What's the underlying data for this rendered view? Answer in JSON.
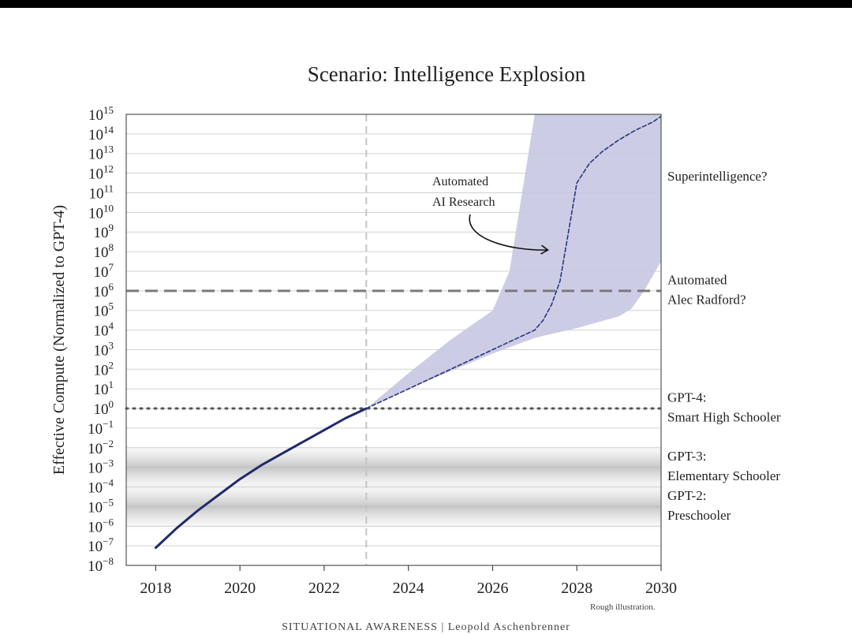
{
  "chart_data": {
    "type": "line",
    "title": "Scenario: Intelligence Explosion",
    "ylabel": "Effective Compute (Normalized to GPT-4)",
    "xlabel": "",
    "y_scale": "log10",
    "xlim": [
      2017.3,
      2030
    ],
    "ylim": [
      1e-08,
      1000000000000000.0
    ],
    "x_ticks": [
      "2018",
      "2020",
      "2022",
      "2024",
      "2026",
      "2028",
      "2030"
    ],
    "y_tick_exponents": [
      15,
      14,
      13,
      12,
      11,
      10,
      9,
      8,
      7,
      6,
      5,
      4,
      3,
      2,
      1,
      0,
      -1,
      -2,
      -3,
      -4,
      -5,
      -6,
      -7,
      -8
    ],
    "y_tick_base": "10",
    "grid": true,
    "series": [
      {
        "role": "historical",
        "style": "solid",
        "color": "#1f2a6b",
        "x": [
          2018.0,
          2018.5,
          2019.0,
          2019.5,
          2020.0,
          2020.5,
          2021.0,
          2021.5,
          2022.0,
          2022.5,
          2023.0
        ],
        "y_log10": [
          -7.1,
          -6.1,
          -5.2,
          -4.4,
          -3.6,
          -2.9,
          -2.3,
          -1.7,
          -1.1,
          -0.5,
          0.0
        ]
      },
      {
        "role": "projection",
        "style": "dashed",
        "color": "#2a3580",
        "x": [
          2023.0,
          2023.5,
          2024.0,
          2024.5,
          2025.0,
          2025.5,
          2026.0,
          2026.5,
          2027.0,
          2027.2,
          2027.4,
          2027.6,
          2027.8,
          2028.0,
          2028.3,
          2028.6,
          2029.0,
          2029.4,
          2029.8,
          2030.0
        ],
        "y_log10": [
          0.0,
          0.5,
          1.0,
          1.5,
          2.0,
          2.5,
          3.0,
          3.5,
          4.0,
          4.5,
          5.3,
          6.5,
          9.0,
          11.5,
          12.5,
          13.1,
          13.7,
          14.2,
          14.6,
          14.9
        ]
      }
    ],
    "uncertainty_band": {
      "color": "#c7c8e2",
      "x": [
        2023.0,
        2024.0,
        2025.0,
        2026.0,
        2026.4,
        2026.7,
        2027.0,
        2030.0,
        2030.0,
        2029.6,
        2029.3,
        2029.0,
        2028.5,
        2028.0,
        2027.0,
        2026.0,
        2025.0,
        2024.0,
        2023.0
      ],
      "y_log10": [
        0.0,
        1.8,
        3.5,
        5.0,
        7.0,
        11.0,
        15.0,
        15.0,
        7.5,
        6.0,
        5.1,
        4.7,
        4.4,
        4.1,
        3.6,
        2.8,
        1.9,
        1.0,
        0.0
      ]
    },
    "reference_lines": [
      {
        "y_log10": 6,
        "style": "dashed",
        "labels": [
          "Automated",
          "Alec Radford?"
        ]
      },
      {
        "y_log10": 0,
        "style": "dotted",
        "labels": [
          "GPT-4:",
          "Smart High Schooler"
        ]
      }
    ],
    "vertical_line": {
      "x": 2023.0,
      "style": "dashed"
    },
    "shaded_bands": [
      {
        "y_log10": -3,
        "labels": [
          "GPT-3:",
          "Elementary Schooler"
        ]
      },
      {
        "y_log10": -5,
        "labels": [
          "GPT-2:",
          "Preschooler"
        ]
      }
    ],
    "right_labels": [
      {
        "y_log10": 11.9,
        "labels": [
          "Superintelligence?"
        ]
      }
    ],
    "annotation": {
      "labels": [
        "Automated",
        "AI Research"
      ],
      "arrow_target_x": 2027.5,
      "arrow_target_y_log10": 8.0
    },
    "footnote": "Rough illustration."
  },
  "footer": "SITUATIONAL AWARENESS | Leopold Aschenbrenner",
  "colors": {
    "line": "#1f2a6b",
    "band": "#c7c8e2",
    "grid": "#d0d0d0"
  }
}
